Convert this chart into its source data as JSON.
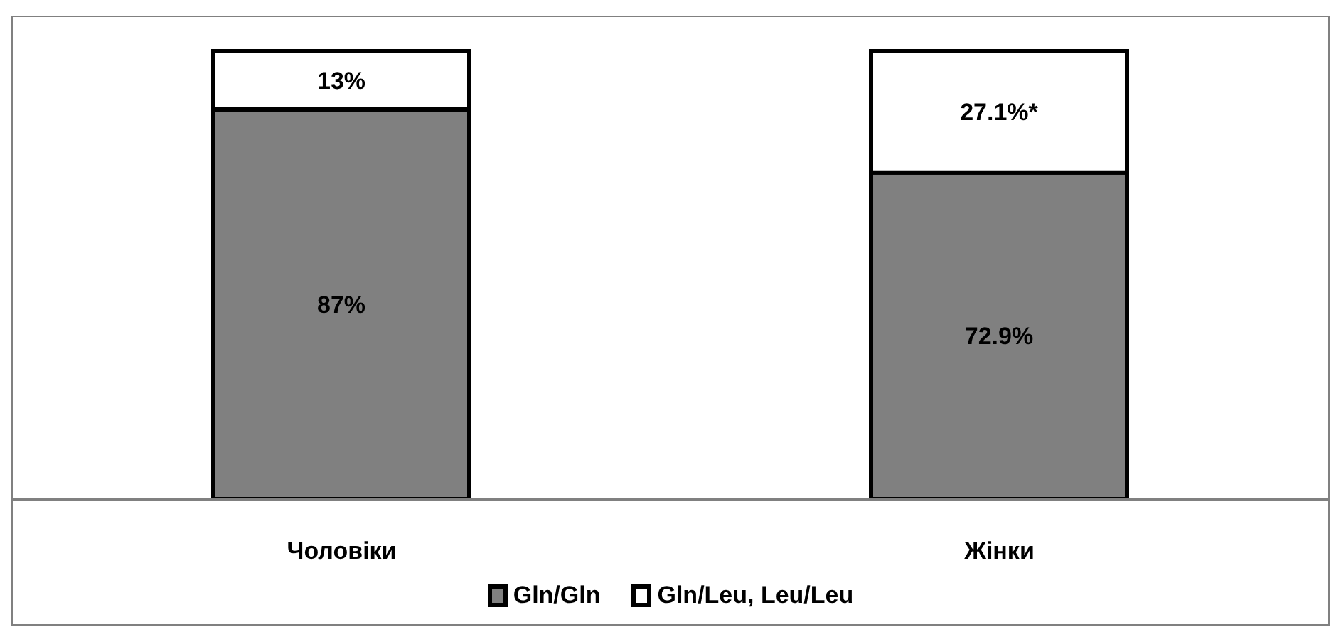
{
  "chart_data": {
    "type": "bar",
    "stacked": true,
    "categories": [
      "Чоловіки",
      "Жінки"
    ],
    "series": [
      {
        "name": "Gln/Gln",
        "color": "#808080",
        "values": [
          87,
          72.9
        ],
        "value_labels": [
          "87%",
          "72.9%"
        ]
      },
      {
        "name": "Gln/Leu, Leu/Leu",
        "color": "#ffffff",
        "values": [
          13,
          27.1
        ],
        "value_labels": [
          "13%",
          "27.1%*"
        ]
      }
    ],
    "legend": "bottom",
    "grid": false
  }
}
